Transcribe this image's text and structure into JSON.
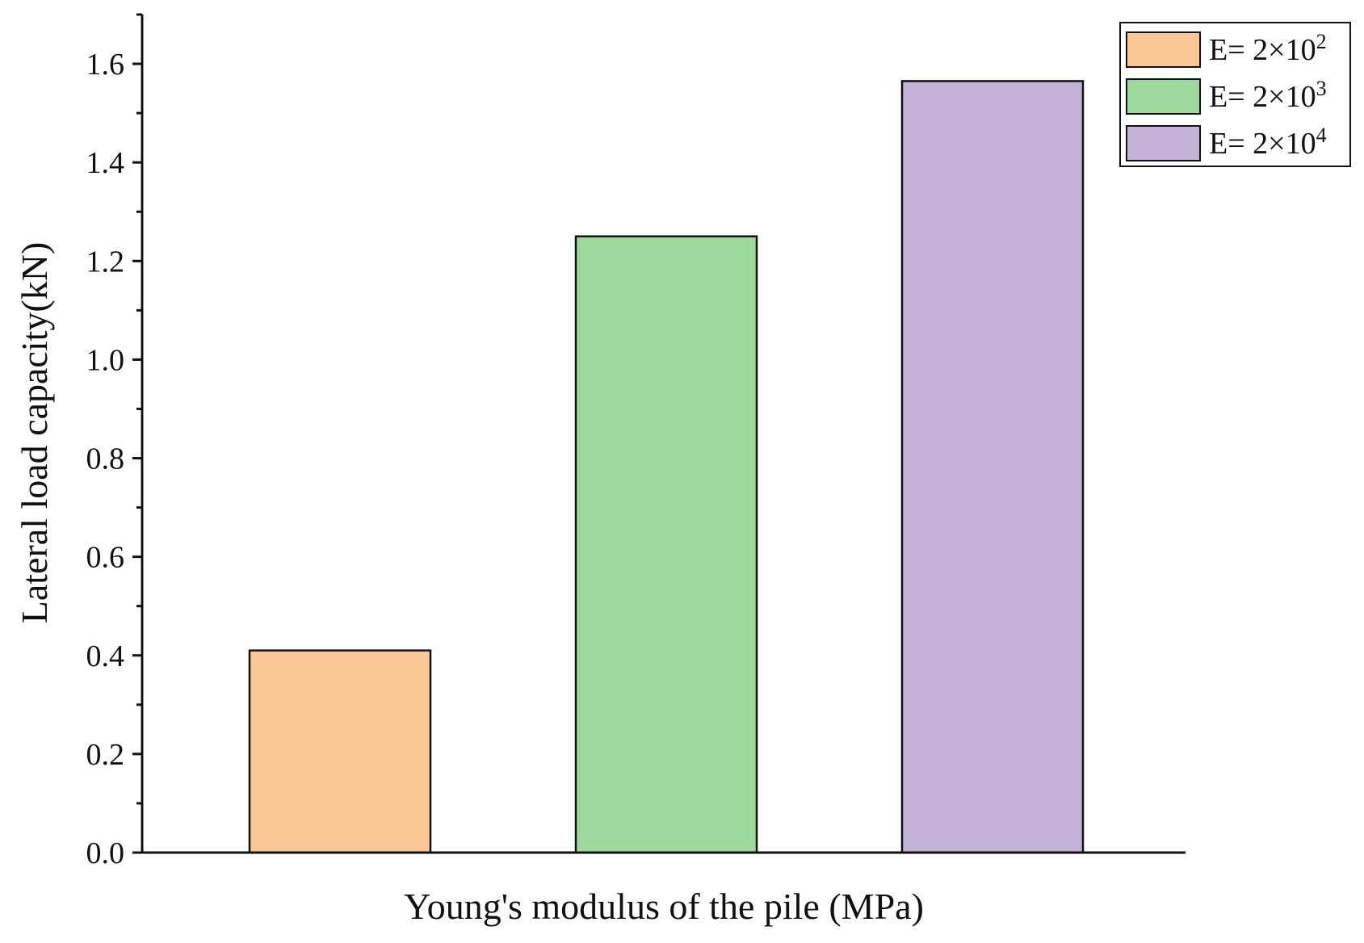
{
  "chart_data": {
    "type": "bar",
    "categories": [
      "E= 2×10^2",
      "E= 2×10^3",
      "E= 2×10^4"
    ],
    "series": [
      {
        "name": "E= 2×10^2",
        "legend_base": "E= 2×10",
        "legend_exp": "2",
        "value": 0.41,
        "color": "#fbc797"
      },
      {
        "name": "E= 2×10^3",
        "legend_base": "E= 2×10",
        "legend_exp": "3",
        "value": 1.25,
        "color": "#9fd89c"
      },
      {
        "name": "E= 2×10^4",
        "legend_base": "E= 2×10",
        "legend_exp": "4",
        "value": 1.565,
        "color": "#c3b1d7"
      }
    ],
    "values": [
      0.41,
      1.25,
      1.565
    ],
    "title": "",
    "xlabel": "Young's modulus of the pile (MPa)",
    "ylabel": "Lateral load capacity(kN)",
    "ylim": [
      0.0,
      1.7
    ],
    "yticks": [
      "0.0",
      "0.2",
      "0.4",
      "0.6",
      "0.8",
      "1.0",
      "1.2",
      "1.4",
      "1.6"
    ],
    "ytick_values": [
      0.0,
      0.2,
      0.4,
      0.6,
      0.8,
      1.0,
      1.2,
      1.4,
      1.6
    ],
    "grid": false,
    "legend_position": "top-right"
  }
}
